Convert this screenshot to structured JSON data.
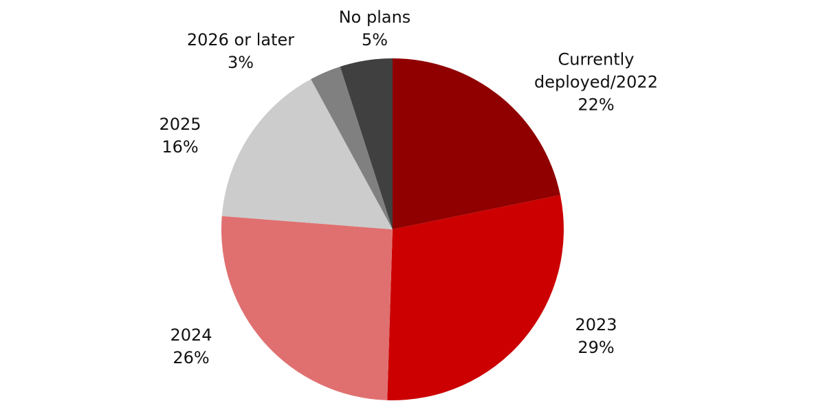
{
  "chart_data": {
    "type": "pie",
    "categories": [
      "Currently deployed/2022",
      "2023",
      "2024",
      "2025",
      "2026 or later",
      "No plans"
    ],
    "values": [
      22,
      29,
      26,
      16,
      3,
      5
    ],
    "value_labels": [
      "22%",
      "29%",
      "26%",
      "16%",
      "3%",
      "5%"
    ],
    "colors": [
      "#900000",
      "#cc0000",
      "#e07070",
      "#cccccc",
      "#808080",
      "#404040"
    ]
  }
}
